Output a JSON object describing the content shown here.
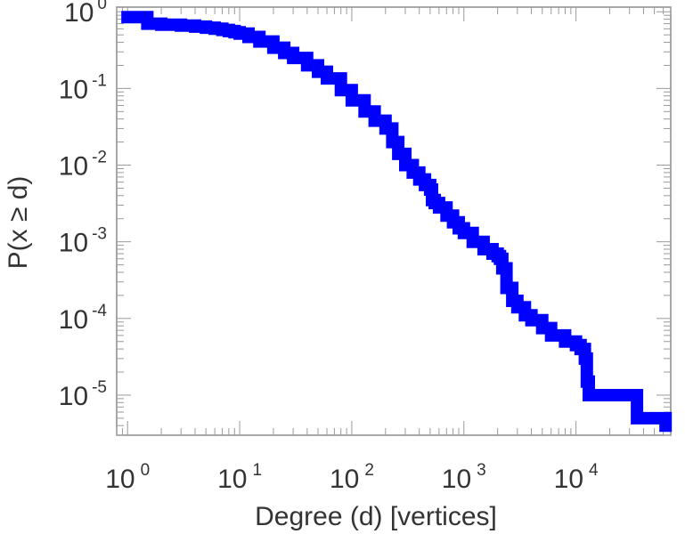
{
  "chart_data": {
    "type": "line",
    "xscale": "log",
    "yscale": "log",
    "xlabel": "Degree (d) [vertices]",
    "ylabel": "P(x ≥ d)",
    "xlim": [
      0.8,
      70000
    ],
    "ylim": [
      3e-06,
      1.15
    ],
    "grid": false,
    "series_color": "#0000ff",
    "xticks": [
      {
        "value": 1,
        "base": "10",
        "exp": "0"
      },
      {
        "value": 10,
        "base": "10",
        "exp": "1"
      },
      {
        "value": 100,
        "base": "10",
        "exp": "2"
      },
      {
        "value": 1000,
        "base": "10",
        "exp": "3"
      },
      {
        "value": 10000,
        "base": "10",
        "exp": "4"
      }
    ],
    "yticks": [
      {
        "value": 1,
        "base": "10",
        "exp": "0"
      },
      {
        "value": 0.1,
        "base": "10",
        "exp": "-1"
      },
      {
        "value": 0.01,
        "base": "10",
        "exp": "-2"
      },
      {
        "value": 0.001,
        "base": "10",
        "exp": "-3"
      },
      {
        "value": 0.0001,
        "base": "10",
        "exp": "-4"
      },
      {
        "value": 1e-05,
        "base": "10",
        "exp": "-5"
      }
    ],
    "series": [
      {
        "x": [
          1,
          1.5,
          2,
          3,
          4,
          5,
          6,
          7,
          8,
          9,
          10,
          12,
          15,
          20,
          25,
          30,
          40,
          50,
          60,
          80,
          100,
          130,
          160,
          200,
          230,
          260,
          300,
          350,
          400,
          450,
          500,
          520,
          550,
          600,
          700,
          800,
          900,
          1000,
          1200,
          1500,
          1800,
          2000,
          2100,
          2200,
          2400,
          2700,
          3000,
          3500,
          4000,
          5000,
          6000,
          8000,
          10000,
          11000,
          12000,
          12500,
          13000,
          15000,
          20000,
          30000,
          35000,
          40000,
          50000,
          60000,
          63000
        ],
        "y": [
          0.85,
          0.7,
          0.68,
          0.66,
          0.64,
          0.62,
          0.6,
          0.58,
          0.56,
          0.54,
          0.52,
          0.47,
          0.41,
          0.34,
          0.29,
          0.25,
          0.2,
          0.165,
          0.135,
          0.095,
          0.07,
          0.05,
          0.038,
          0.03,
          0.02,
          0.014,
          0.01,
          0.008,
          0.0065,
          0.0055,
          0.0048,
          0.0035,
          0.0032,
          0.0028,
          0.0022,
          0.0018,
          0.0015,
          0.0013,
          0.001,
          0.0008,
          0.0007,
          0.00065,
          0.0006,
          0.00045,
          0.00025,
          0.00017,
          0.00014,
          0.00011,
          9.5e-05,
          7.5e-05,
          6e-05,
          5e-05,
          4.5e-05,
          4e-05,
          3e-05,
          1.5e-05,
          1e-05,
          1e-05,
          1e-05,
          1e-05,
          5e-06,
          5e-06,
          5e-06,
          5e-06,
          4e-06
        ]
      }
    ]
  }
}
